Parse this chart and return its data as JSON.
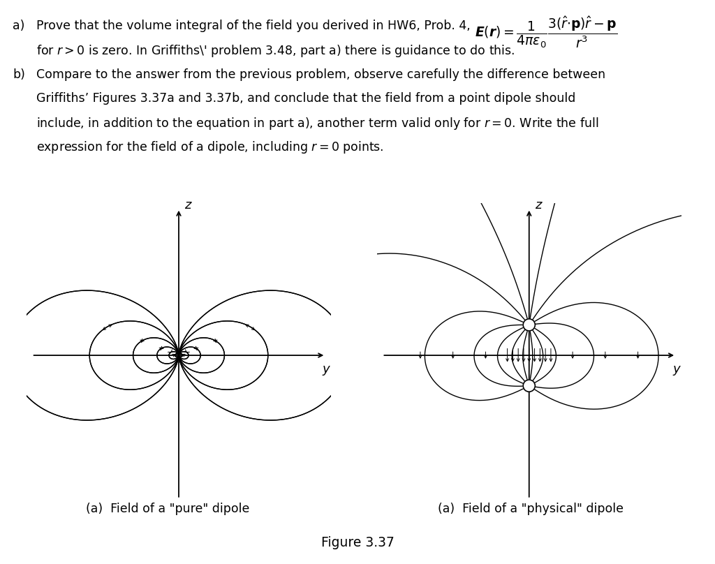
{
  "title_text": "Figure 3.37",
  "caption_pure": "(a)  Field of a \"pure\" dipole",
  "caption_physical": "(a)  Field of a \"physical\" dipole",
  "background_color": "#ffffff",
  "text_color": "#000000",
  "font_size": 11.5
}
